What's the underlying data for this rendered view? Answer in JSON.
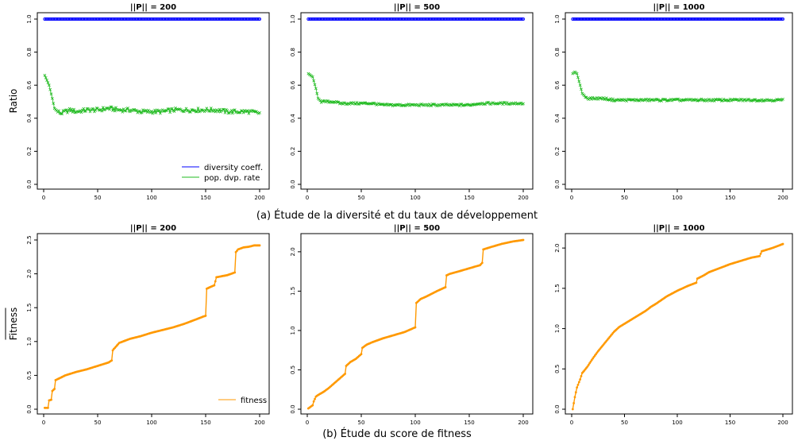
{
  "figure": {
    "caption_a": "(a) Étude de la diversité et du taux de développement",
    "caption_b": "(b) Étude du score de fitness"
  },
  "colors": {
    "diversity": "#0000ff",
    "dvp_rate": "#22bb22",
    "fitness": "#ff9900",
    "axis": "#000000"
  },
  "chart_data": [
    {
      "type": "scatter",
      "title": "||P|| = 200",
      "ylabel": "Ratio",
      "xlim": [
        0,
        200
      ],
      "ylim": [
        0,
        1
      ],
      "xticks": [
        0,
        50,
        100,
        150,
        200
      ],
      "yticks": [
        0.0,
        0.2,
        0.4,
        0.6,
        0.8,
        1.0
      ],
      "ytick_labels": [
        "0.0",
        "0.2",
        "0.4",
        "0.6",
        "0.8",
        "1.0"
      ],
      "legend": {
        "placement": "bottom-right",
        "entries": [
          "diversity coeff.",
          "pop. dvp. rate"
        ]
      },
      "series": [
        {
          "name": "diversity coeff.",
          "x": [
            1,
            200
          ],
          "values": [
            1.0,
            1.0
          ]
        },
        {
          "name": "pop. dvp. rate",
          "x": [
            1,
            3,
            5,
            8,
            10,
            13,
            16,
            20,
            25,
            30,
            40,
            50,
            60,
            70,
            80,
            90,
            100,
            110,
            120,
            130,
            140,
            150,
            160,
            170,
            180,
            190,
            200
          ],
          "values": [
            0.66,
            0.63,
            0.6,
            0.52,
            0.46,
            0.44,
            0.43,
            0.44,
            0.45,
            0.44,
            0.45,
            0.45,
            0.46,
            0.45,
            0.45,
            0.44,
            0.44,
            0.44,
            0.45,
            0.45,
            0.45,
            0.45,
            0.45,
            0.44,
            0.44,
            0.44,
            0.43
          ]
        }
      ]
    },
    {
      "type": "scatter",
      "title": "||P|| = 500",
      "ylabel": "",
      "xlim": [
        0,
        200
      ],
      "ylim": [
        0,
        1
      ],
      "xticks": [
        0,
        50,
        100,
        150,
        200
      ],
      "yticks": [
        0.0,
        0.2,
        0.4,
        0.6,
        0.8,
        1.0
      ],
      "ytick_labels": [
        "0.0",
        "0.2",
        "0.4",
        "0.6",
        "0.8",
        "1.0"
      ],
      "series": [
        {
          "name": "diversity coeff.",
          "x": [
            1,
            200
          ],
          "values": [
            1.0,
            1.0
          ]
        },
        {
          "name": "pop. dvp. rate",
          "x": [
            1,
            3,
            5,
            8,
            10,
            13,
            16,
            20,
            25,
            30,
            40,
            50,
            60,
            70,
            80,
            90,
            100,
            110,
            120,
            130,
            140,
            150,
            160,
            170,
            180,
            190,
            200
          ],
          "values": [
            0.67,
            0.66,
            0.65,
            0.58,
            0.52,
            0.5,
            0.5,
            0.5,
            0.5,
            0.49,
            0.49,
            0.49,
            0.49,
            0.48,
            0.48,
            0.48,
            0.48,
            0.48,
            0.48,
            0.48,
            0.48,
            0.48,
            0.49,
            0.49,
            0.49,
            0.49,
            0.49
          ]
        }
      ]
    },
    {
      "type": "scatter",
      "title": "||P|| = 1000",
      "ylabel": "",
      "xlim": [
        0,
        200
      ],
      "ylim": [
        0,
        1
      ],
      "xticks": [
        0,
        50,
        100,
        150,
        200
      ],
      "yticks": [
        0.0,
        0.2,
        0.4,
        0.6,
        0.8,
        1.0
      ],
      "ytick_labels": [
        "0.0",
        "0.2",
        "0.4",
        "0.6",
        "0.8",
        "1.0"
      ],
      "series": [
        {
          "name": "diversity coeff.",
          "x": [
            1,
            200
          ],
          "values": [
            1.0,
            1.0
          ]
        },
        {
          "name": "pop. dvp. rate",
          "x": [
            1,
            3,
            5,
            8,
            10,
            13,
            16,
            20,
            25,
            30,
            40,
            50,
            60,
            70,
            80,
            90,
            100,
            110,
            120,
            130,
            140,
            150,
            160,
            170,
            180,
            190,
            200
          ],
          "values": [
            0.67,
            0.68,
            0.67,
            0.6,
            0.55,
            0.53,
            0.52,
            0.52,
            0.52,
            0.52,
            0.51,
            0.51,
            0.51,
            0.51,
            0.51,
            0.51,
            0.51,
            0.51,
            0.51,
            0.51,
            0.51,
            0.51,
            0.51,
            0.51,
            0.51,
            0.51,
            0.51
          ]
        }
      ]
    },
    {
      "type": "line",
      "title": "||P|| = 200",
      "ylabel": "Fitness",
      "xlim": [
        0,
        200
      ],
      "ylim": [
        0,
        2.5
      ],
      "xticks": [
        0,
        50,
        100,
        150,
        200
      ],
      "yticks": [
        0.0,
        0.5,
        1.0,
        1.5,
        2.0,
        2.5
      ],
      "ytick_labels": [
        "0.0",
        "0.5",
        "1.0",
        "1.5",
        "2.0",
        "2.5"
      ],
      "legend": {
        "placement": "bottom-right",
        "entries": [
          "fitness"
        ]
      },
      "series": [
        {
          "name": "fitness",
          "x": [
            1,
            4,
            5,
            7,
            8,
            10,
            11,
            15,
            20,
            30,
            40,
            50,
            60,
            63,
            64,
            65,
            70,
            80,
            90,
            100,
            110,
            120,
            130,
            140,
            148,
            150,
            151,
            155,
            158,
            160,
            170,
            177,
            178,
            180,
            185,
            190,
            195,
            200
          ],
          "values": [
            0.02,
            0.02,
            0.13,
            0.14,
            0.27,
            0.3,
            0.43,
            0.46,
            0.5,
            0.55,
            0.59,
            0.64,
            0.69,
            0.72,
            0.87,
            0.89,
            0.98,
            1.04,
            1.08,
            1.13,
            1.17,
            1.21,
            1.26,
            1.32,
            1.37,
            1.38,
            1.78,
            1.81,
            1.83,
            1.95,
            1.98,
            2.02,
            2.32,
            2.36,
            2.39,
            2.4,
            2.42,
            2.42
          ]
        }
      ]
    },
    {
      "type": "line",
      "title": "||P|| = 500",
      "ylabel": "",
      "xlim": [
        0,
        200
      ],
      "ylim": [
        0,
        2.15
      ],
      "xticks": [
        0,
        50,
        100,
        150,
        200
      ],
      "yticks": [
        0.0,
        0.5,
        1.0,
        1.5,
        2.0
      ],
      "ytick_labels": [
        "0.0",
        "0.5",
        "1.0",
        "1.5",
        "2.0"
      ],
      "series": [
        {
          "name": "fitness",
          "x": [
            1,
            5,
            6,
            8,
            10,
            15,
            20,
            25,
            30,
            35,
            36,
            40,
            45,
            50,
            51,
            55,
            60,
            70,
            80,
            90,
            100,
            101,
            105,
            110,
            120,
            128,
            129,
            132,
            140,
            150,
            160,
            162,
            163,
            170,
            180,
            190,
            200
          ],
          "values": [
            0.01,
            0.05,
            0.1,
            0.16,
            0.18,
            0.22,
            0.27,
            0.33,
            0.39,
            0.45,
            0.55,
            0.6,
            0.64,
            0.7,
            0.78,
            0.82,
            0.85,
            0.9,
            0.94,
            0.98,
            1.04,
            1.35,
            1.4,
            1.43,
            1.5,
            1.55,
            1.7,
            1.72,
            1.75,
            1.79,
            1.83,
            1.86,
            2.03,
            2.06,
            2.1,
            2.13,
            2.15
          ]
        }
      ]
    },
    {
      "type": "line",
      "title": "||P|| = 1000",
      "ylabel": "",
      "xlim": [
        0,
        200
      ],
      "ylim": [
        0,
        2.1
      ],
      "xticks": [
        0,
        50,
        100,
        150,
        200
      ],
      "yticks": [
        0.0,
        0.5,
        1.0,
        1.5,
        2.0
      ],
      "ytick_labels": [
        "0.0",
        "0.5",
        "1.0",
        "1.5",
        "2.0"
      ],
      "series": [
        {
          "name": "fitness",
          "x": [
            1,
            3,
            5,
            8,
            10,
            12,
            15,
            20,
            25,
            30,
            35,
            40,
            45,
            50,
            55,
            60,
            65,
            70,
            75,
            80,
            90,
            100,
            110,
            118,
            119,
            125,
            130,
            140,
            150,
            160,
            170,
            178,
            180,
            190,
            200
          ],
          "values": [
            0.0,
            0.15,
            0.27,
            0.37,
            0.45,
            0.48,
            0.53,
            0.63,
            0.72,
            0.8,
            0.88,
            0.96,
            1.02,
            1.06,
            1.1,
            1.14,
            1.18,
            1.22,
            1.27,
            1.31,
            1.4,
            1.47,
            1.53,
            1.57,
            1.62,
            1.66,
            1.7,
            1.75,
            1.8,
            1.84,
            1.88,
            1.9,
            1.96,
            2.0,
            2.05
          ]
        }
      ]
    }
  ]
}
